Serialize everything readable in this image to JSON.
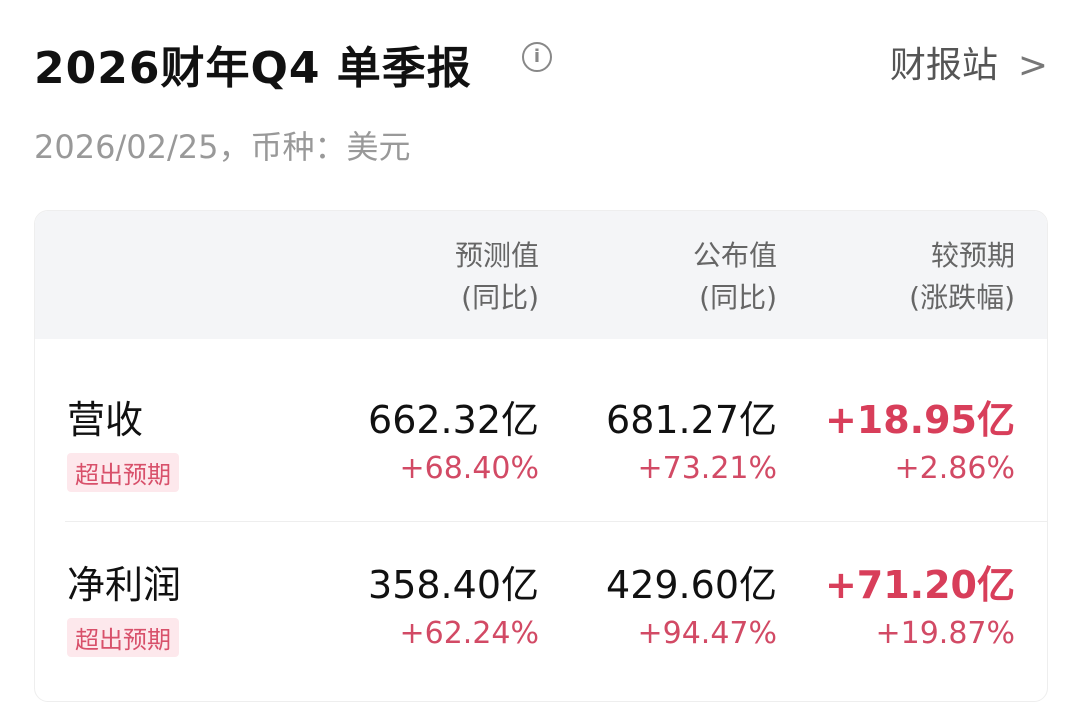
{
  "header": {
    "title": "2026财年Q4 单季报",
    "link": "财报站",
    "subtitle": "2026/02/25，币种：美元"
  },
  "columns": [
    {
      "l1": "预测值",
      "l2": "(同比)"
    },
    {
      "l1": "公布值",
      "l2": "(同比)"
    },
    {
      "l1": "较预期",
      "l2": "(涨跌幅)"
    }
  ],
  "rows": [
    {
      "label": "营收",
      "tag": "超出预期",
      "est": "662.32亿",
      "est_yoy": "+68.40%",
      "act": "681.27亿",
      "act_yoy": "+73.21%",
      "diff": "+18.95亿",
      "diff_pct": "+2.86%"
    },
    {
      "label": "净利润",
      "tag": "超出预期",
      "est": "358.40亿",
      "est_yoy": "+62.24%",
      "act": "429.60亿",
      "act_yoy": "+94.47%",
      "diff": "+71.20亿",
      "diff_pct": "+19.87%"
    }
  ],
  "colors": {
    "up": "#d83e5a",
    "tag_bg": "#fde8ec"
  }
}
